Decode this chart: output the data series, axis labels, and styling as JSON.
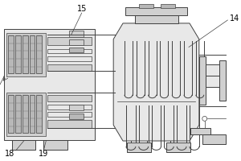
{
  "bg_color": "#ffffff",
  "lc": "#404040",
  "fc_light": "#e8e8e8",
  "fc_mid": "#d0d0d0",
  "fc_dark": "#b8b8b8",
  "lw": 0.7,
  "lt": 0.5
}
